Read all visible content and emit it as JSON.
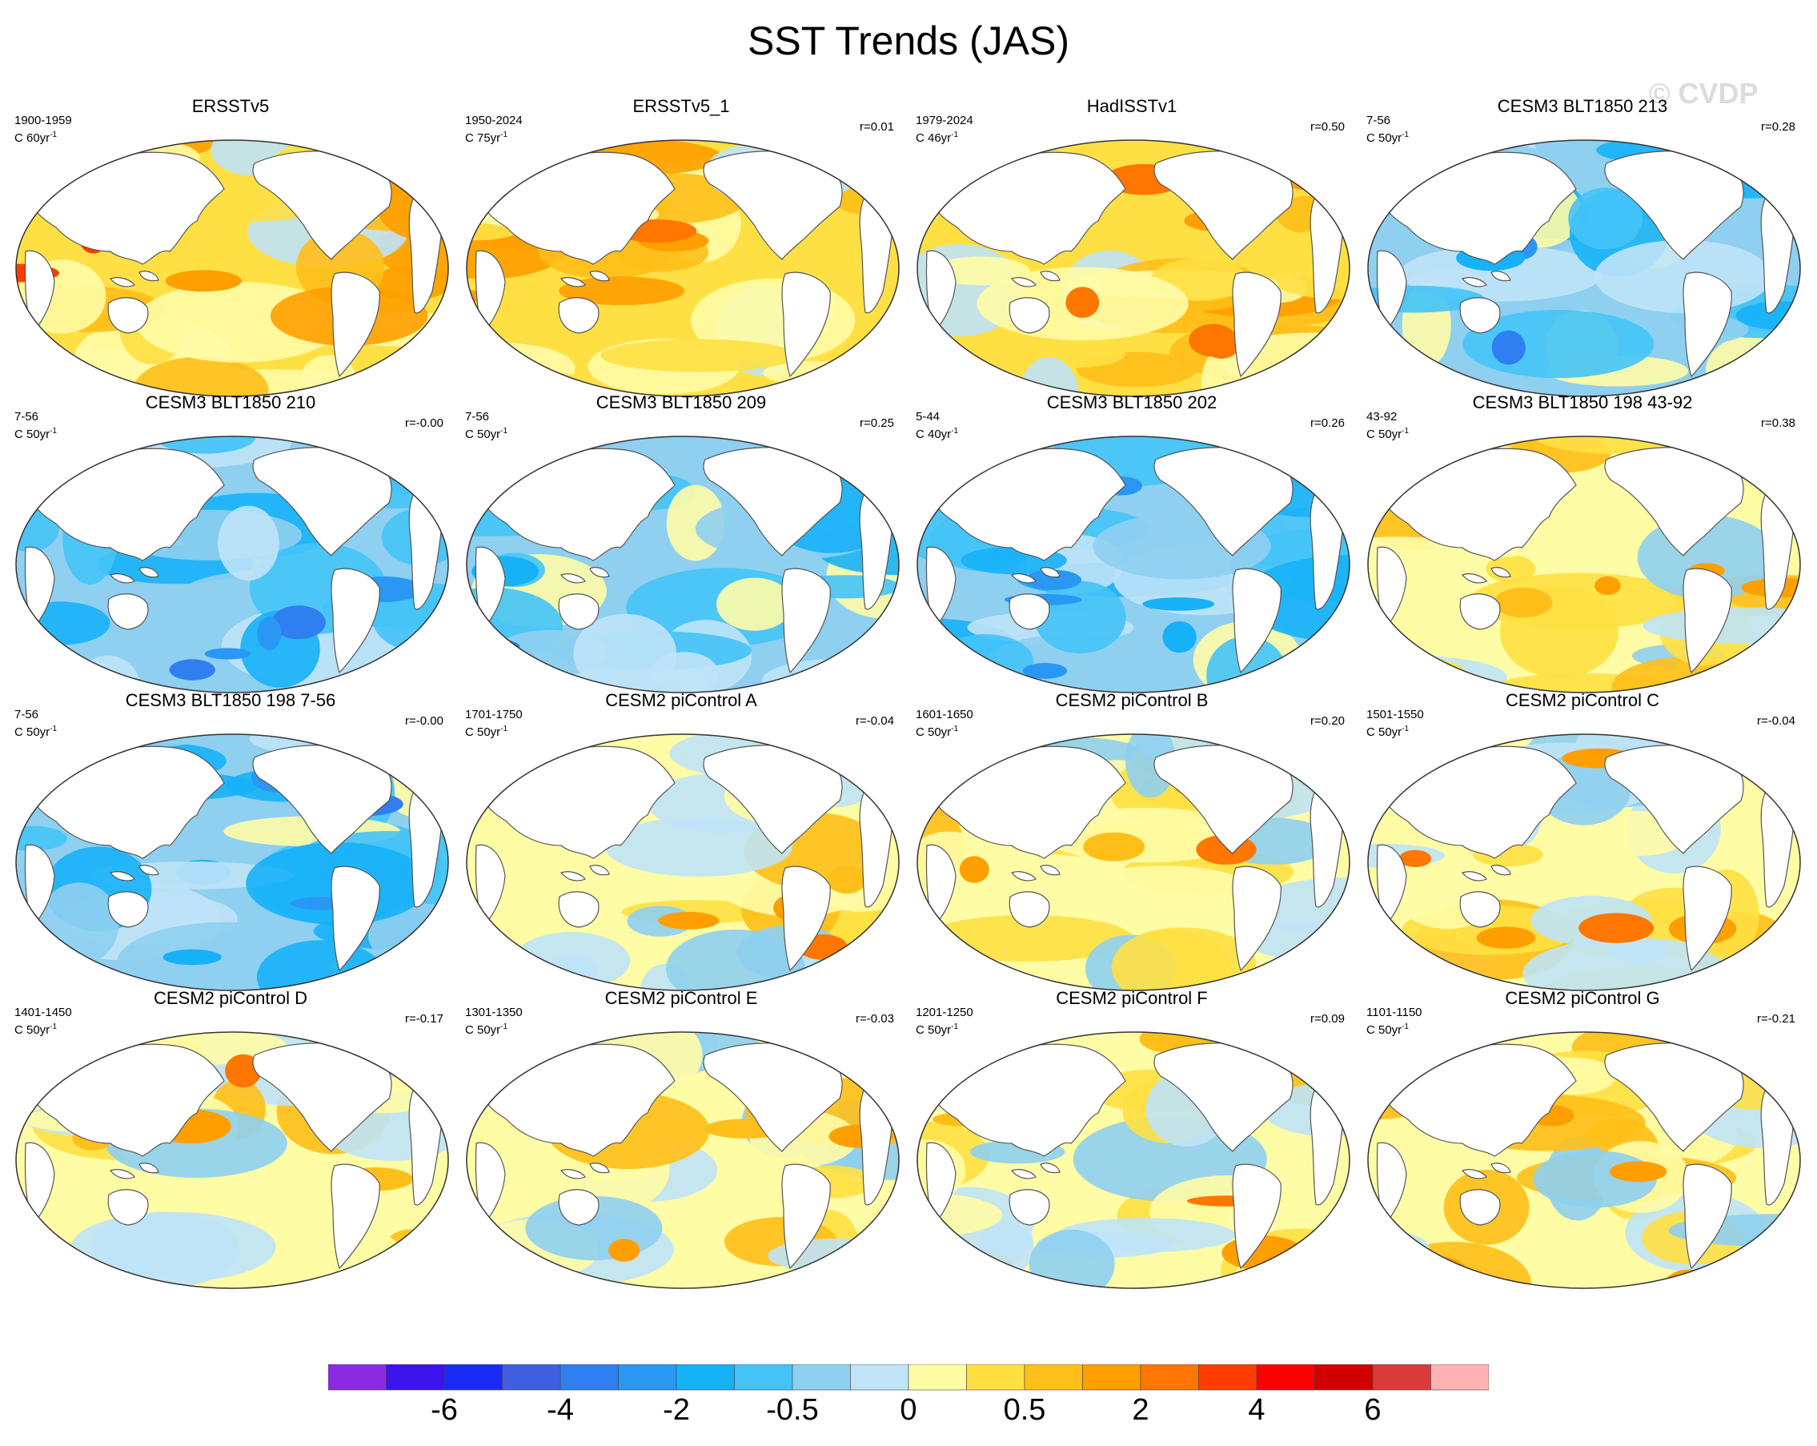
{
  "figure": {
    "title": "SST Trends (JAS)",
    "watermark": "© CVDP",
    "colors": {
      "land": "#ffffff",
      "coast": "#555555",
      "frame": "#333333"
    }
  },
  "panels": [
    {
      "title": "ERSSTv5",
      "period": "1900-1959",
      "trend": "C 60yr",
      "corr": "",
      "mean_class": 1.2,
      "seed": 3
    },
    {
      "title": "ERSSTv5_1",
      "period": "1950-2024",
      "trend": "C 75yr",
      "corr": "r=0.01",
      "mean_class": 1.7,
      "seed": 7
    },
    {
      "title": "HadISSTv1",
      "period": "1979-2024",
      "trend": "C 46yr",
      "corr": "r=0.50",
      "mean_class": 1.3,
      "seed": 11
    },
    {
      "title": "CESM3 BLT1850 213",
      "period": "7-56",
      "trend": "C 50yr",
      "corr": "r=0.28",
      "mean_class": -1.6,
      "seed": 13
    },
    {
      "title": "CESM3 BLT1850 210",
      "period": "7-56",
      "trend": "C 50yr",
      "corr": "r=-0.00",
      "mean_class": -1.4,
      "seed": 17
    },
    {
      "title": "CESM3 BLT1850 209",
      "period": "7-56",
      "trend": "C 50yr",
      "corr": "r=0.25",
      "mean_class": -1.5,
      "seed": 19
    },
    {
      "title": "CESM3 BLT1850 202",
      "period": "5-44",
      "trend": "C 40yr",
      "corr": "r=0.26",
      "mean_class": -1.8,
      "seed": 23
    },
    {
      "title": "CESM3 BLT1850 198 43-92",
      "period": "43-92",
      "trend": "C 50yr",
      "corr": "r=0.38",
      "mean_class": 0.9,
      "seed": 29
    },
    {
      "title": "CESM3 BLT1850 198 7-56",
      "period": "7-56",
      "trend": "C 50yr",
      "corr": "r=-0.00",
      "mean_class": -1.7,
      "seed": 31
    },
    {
      "title": "CESM2 piControl A",
      "period": "1701-1750",
      "trend": "C 50yr",
      "corr": "r=-0.04",
      "mean_class": 0.1,
      "seed": 37
    },
    {
      "title": "CESM2 piControl B",
      "period": "1601-1650",
      "trend": "C 50yr",
      "corr": "r=0.20",
      "mean_class": 0.0,
      "seed": 41
    },
    {
      "title": "CESM2 piControl C",
      "period": "1501-1550",
      "trend": "C 50yr",
      "corr": "r=-0.04",
      "mean_class": 0.2,
      "seed": 43
    },
    {
      "title": "CESM2 piControl D",
      "period": "1401-1450",
      "trend": "C 50yr",
      "corr": "r=-0.17",
      "mean_class": 0.1,
      "seed": 47
    },
    {
      "title": "CESM2 piControl E",
      "period": "1301-1350",
      "trend": "C 50yr",
      "corr": "r=-0.03",
      "mean_class": 0.0,
      "seed": 53
    },
    {
      "title": "CESM2 piControl F",
      "period": "1201-1250",
      "trend": "C 50yr",
      "corr": "r=0.09",
      "mean_class": 0.2,
      "seed": 59
    },
    {
      "title": "CESM2 piControl G",
      "period": "1101-1150",
      "trend": "C 50yr",
      "corr": "r=-0.21",
      "mean_class": 0.1,
      "seed": 61
    }
  ],
  "trend_unit_exponent": "-1",
  "colorbar": {
    "colors": [
      "#8b2be2",
      "#3d13ec",
      "#1a2af5",
      "#3f5ee0",
      "#2f7ff0",
      "#2a97f5",
      "#17b1f7",
      "#45c3f7",
      "#8fcff0",
      "#bfe3f7",
      "#fffca6",
      "#ffe044",
      "#ffbf1a",
      "#ff9f00",
      "#ff7600",
      "#ff3c00",
      "#ff0000",
      "#d10000",
      "#d93b3b",
      "#ffb3b3"
    ],
    "labels": [
      {
        "text": "-6",
        "boundary": 2
      },
      {
        "text": "-4",
        "boundary": 4
      },
      {
        "text": "-2",
        "boundary": 6
      },
      {
        "text": "-0.5",
        "boundary": 8
      },
      {
        "text": "0",
        "boundary": 10
      },
      {
        "text": "0.5",
        "boundary": 12
      },
      {
        "text": "2",
        "boundary": 14
      },
      {
        "text": "4",
        "boundary": 16
      },
      {
        "text": "6",
        "boundary": 18
      }
    ]
  }
}
